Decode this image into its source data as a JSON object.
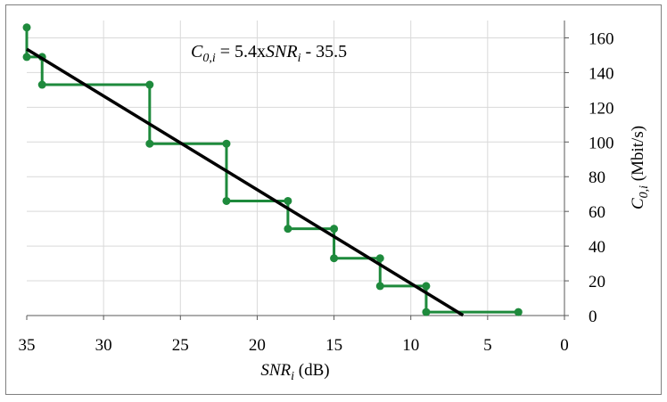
{
  "chart_data": {
    "type": "line",
    "title": "",
    "x_axis": {
      "label_main": "SNR",
      "label_sub": "i",
      "label_unit": " (dB)",
      "range": [
        35,
        0
      ],
      "reversed": true,
      "ticks": [
        35,
        30,
        25,
        20,
        15,
        10,
        5,
        0
      ],
      "tick_labels": [
        "35",
        "30",
        "25",
        "20",
        "15",
        "10",
        "5",
        "0"
      ]
    },
    "y_axis": {
      "label_main": "C",
      "label_sub": "0,i",
      "label_unit": " (Mbit/s)",
      "position": "right",
      "range": [
        0,
        170
      ],
      "ticks": [
        0,
        20,
        40,
        60,
        80,
        100,
        120,
        140,
        160
      ],
      "tick_labels": [
        "0",
        "20",
        "40",
        "60",
        "80",
        "100",
        "120",
        "140",
        "160"
      ]
    },
    "grid": true,
    "annotation": {
      "lhs_main": "C",
      "lhs_sub": "0,i",
      "mid": " = 5.4x",
      "snr_main": "SNR",
      "snr_sub": "i",
      "tail": " - 35.5"
    },
    "series": [
      {
        "kind": "step",
        "color": "#1e8a3c",
        "points": [
          {
            "x": 35,
            "y": 166
          },
          {
            "x": 35,
            "y": 149
          },
          {
            "x": 34,
            "y": 149
          },
          {
            "x": 34,
            "y": 133
          },
          {
            "x": 27,
            "y": 133
          },
          {
            "x": 27,
            "y": 99
          },
          {
            "x": 22,
            "y": 99
          },
          {
            "x": 22,
            "y": 66
          },
          {
            "x": 18,
            "y": 66
          },
          {
            "x": 18,
            "y": 50
          },
          {
            "x": 15,
            "y": 50
          },
          {
            "x": 15,
            "y": 33
          },
          {
            "x": 12,
            "y": 33
          },
          {
            "x": 12,
            "y": 17
          },
          {
            "x": 9,
            "y": 17
          },
          {
            "x": 9,
            "y": 2
          },
          {
            "x": 3,
            "y": 2
          }
        ]
      },
      {
        "kind": "fit",
        "color": "#000000",
        "slope": 5.4,
        "intercept": -35.5,
        "x_from": 35,
        "x_to": 6.6
      }
    ]
  }
}
